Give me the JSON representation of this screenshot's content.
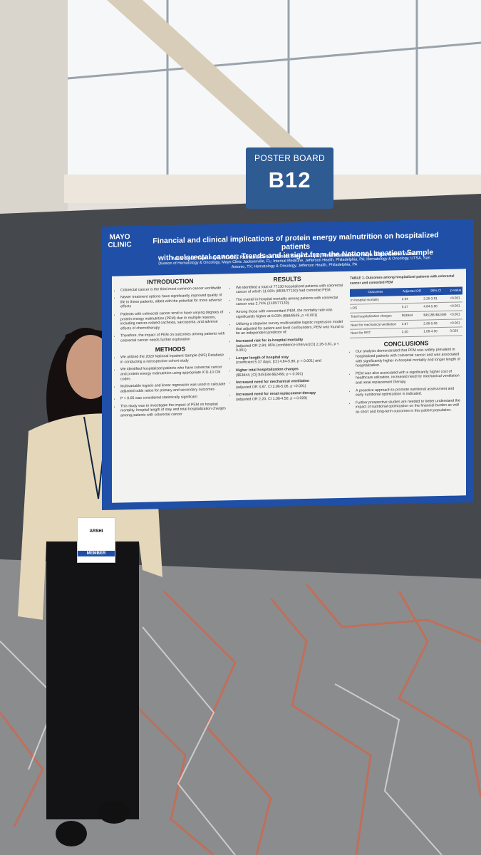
{
  "sign": {
    "label": "POSTER BOARD",
    "code": "B12"
  },
  "poster": {
    "logo": [
      "MAYO",
      "CLINIC"
    ],
    "title": [
      "Financial and clinical implications of protein energy malnutrition on hospitalized patients",
      "with colorectal cancer: Trends and insight from the National Inpatient Sample"
    ],
    "authors": "Arshi Syal, Yajur Arya, Akshay Ratnani, Colton Jones, Carlo Casipit, Himil Mahadevia, Nitya Batra, Gabor Varadi",
    "affiliations": "Division of Hematology & Oncology, Mayo Clinic Jacksonville, FL; Internal Medicine, Jefferson Health, Philadelphia, PA; Hematology & Oncology, UTSA, San Antonio, TX; Hematology & Oncology, Jefferson Health, Philadelphia, PA",
    "introduction": {
      "heading": "INTRODUCTION",
      "items": [
        "Colorectal cancer is the third most common cancer worldwide",
        "Newer treatment options have significantly improved quality of life in these patients, albeit with the potential for more adverse effects",
        "Patients with colorectal cancer tend to have varying degrees of protein energy malnutrition (PEM) due to multiple reasons, including cancer-related cachexia, sarcopenia, and adverse effects of chemotherapy",
        "Therefore, the impact of PEM on outcomes among patients with colorectal cancer needs further exploration"
      ]
    },
    "methods": {
      "heading": "METHODS",
      "items": [
        "We utilized the 2020 National Inpatient Sample (NIS) Database in conducting a retrospective cohort study",
        "We identified hospitalized patients who have colorectal cancer and protein energy malnutrition using appropriate ICD-10 CM codes",
        "Multivariable logistic and linear regression was used to calculate adjusted odds ratios for primary and secondary outcomes",
        "P < 0.05 was considered statistically significant",
        "This study was to investigate the impact of PEM on hospital mortality, hospital length of stay and total hospitalization charges among patients with colorectal cancer"
      ]
    },
    "results": {
      "heading": "RESULTS",
      "items": [
        "We identified a total of 77130 hospitalized patients with colorectal cancer of which 11.06% (8535/77130) had comorbid PEM.",
        "The overall in-hospital mortality among patients with colorectal cancer was 2.74% (2115/77130).",
        "Among those with concomitant PEM, the mortality rate was significantly higher at 8.03% (686/8535, p <0.001)",
        "Utilizing a stepwise survey multivariable logistic regression model that adjusted for patient and level confounders, PEM was found to be an independent predictor of:"
      ],
      "findings": [
        [
          "Increased risk for in-hospital mortality",
          "(adjusted OR 2.94; 95% (confidence interval [CI] 2.26-3.81, p < 0.001)"
        ],
        [
          "Longer length of hospital stay",
          "(coefficient 5.37 days; [CI] 4.84-5.90, p < 0.001) and"
        ],
        [
          "Higher total hospitalization charges",
          "($53844; [CI] $45188-$62499, p < 0.001)"
        ],
        [
          "Increased need for mechanical ventilation",
          "(adjusted OR 3.87, CI 2.96-5.06, p <0.001)"
        ],
        [
          "Increased need for renal replacement therapy",
          "(adjusted OR 2.20, CI 1.08-4.50, p = 0.029)"
        ]
      ]
    },
    "table": {
      "caption": "TABLE 1. Outcomes among hospitalized patients with colorectal cancer and comorbid PEM",
      "header": [
        "Outcomes",
        "Adjusted OR",
        "95% CI",
        "p-value"
      ],
      "rows": [
        [
          "In-hospital mortality",
          "2.94",
          "2.26-3.81",
          "<0.001"
        ],
        [
          "LOS",
          "5.37",
          "4.84-5.90",
          "<0.001"
        ],
        [
          "Total hospitalization charges",
          "$53844",
          "$45188-$62499",
          "<0.001"
        ],
        [
          "Need for mechanical ventilation",
          "3.87",
          "2.96-5.06",
          "<0.001"
        ],
        [
          "Need for RRT",
          "2.20",
          "1.08-4.50",
          "0.029"
        ]
      ]
    },
    "conclusions": {
      "heading": "CONCLUSIONS",
      "items": [
        "Our analysis demonstrated that PEM was widely prevalent in hospitalized patients with colorectal cancer and was associated with significantly higher in-hospital mortality and longer length of hospitalization.",
        "PEM was also associated with a significantly higher cost of healthcare utilization, increased need for mechanical ventilation and renal replacement therapy.",
        "A proactive approach to promote nutritional assessment and early nutritional optimization is indicated.",
        "Further prospective studies are needed to better understand the impact of nutritional optimization on the financial burden as well as short and long-term outcomes in this patient population."
      ]
    }
  },
  "badge": {
    "name": "ARSHI",
    "role": "MEMBER"
  }
}
